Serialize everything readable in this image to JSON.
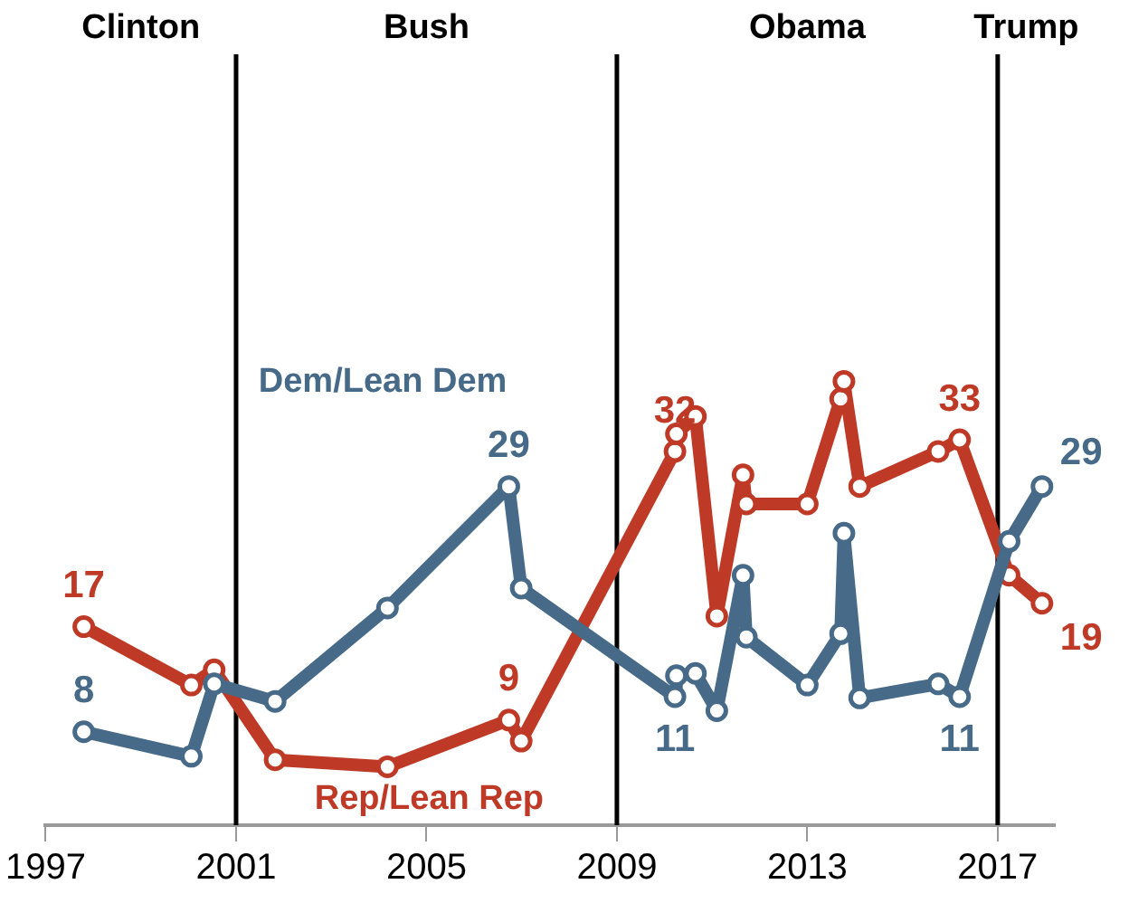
{
  "chart_data": {
    "type": "line",
    "x": [
      1997.8,
      2000.06,
      2000.54,
      2001.82,
      2004.18,
      2006.73,
      2006.99,
      2010.22,
      2010.25,
      2010.65,
      2011.1,
      2011.65,
      2011.72,
      2013.0,
      2013.7,
      2013.77,
      2014.1,
      2015.75,
      2016.2,
      2017.24,
      2017.93
    ],
    "series": [
      {
        "name": "Dem/Lean Dem",
        "color": "#466a87",
        "values": [
          8,
          5.9,
          12.1,
          10.6,
          18.6,
          29,
          20.3,
          11,
          12.8,
          13,
          9.8,
          21.4,
          16.1,
          12,
          16.4,
          25,
          10.9,
          12.1,
          11,
          24.3,
          29
        ],
        "value_labels": [
          "8",
          null,
          null,
          null,
          null,
          "29",
          null,
          "11",
          null,
          null,
          null,
          null,
          null,
          null,
          null,
          null,
          null,
          null,
          "11",
          null,
          "29"
        ]
      },
      {
        "name": "Rep/Lean Rep",
        "color": "#bf3a26",
        "values": [
          17,
          12,
          13.3,
          5.6,
          5,
          9,
          7.2,
          32,
          33.5,
          35,
          17.9,
          30,
          27.5,
          27.5,
          36.5,
          38,
          29,
          32,
          33,
          21.4,
          19
        ],
        "value_labels": [
          "17",
          null,
          null,
          null,
          null,
          "9",
          null,
          "32",
          null,
          null,
          null,
          null,
          null,
          null,
          null,
          null,
          null,
          null,
          "33",
          null,
          "19"
        ]
      }
    ],
    "xlim": [
      1997,
      2018.2
    ],
    "xticks": [
      1997,
      2001,
      2005,
      2009,
      2013,
      2017
    ],
    "ylim": [
      0,
      66
    ],
    "tick_labels": "x",
    "ref_lines": [
      {
        "axis": "x",
        "value": 2001,
        "color": "#000000"
      },
      {
        "axis": "x",
        "value": 2009,
        "color": "#000000"
      },
      {
        "axis": "x",
        "value": 2017,
        "color": "#000000"
      }
    ],
    "annotations": [
      "Clinton",
      "Bush",
      "Obama",
      "Trump"
    ],
    "marker": "circle",
    "grid": false,
    "legend": false,
    "line_style": "solid"
  }
}
